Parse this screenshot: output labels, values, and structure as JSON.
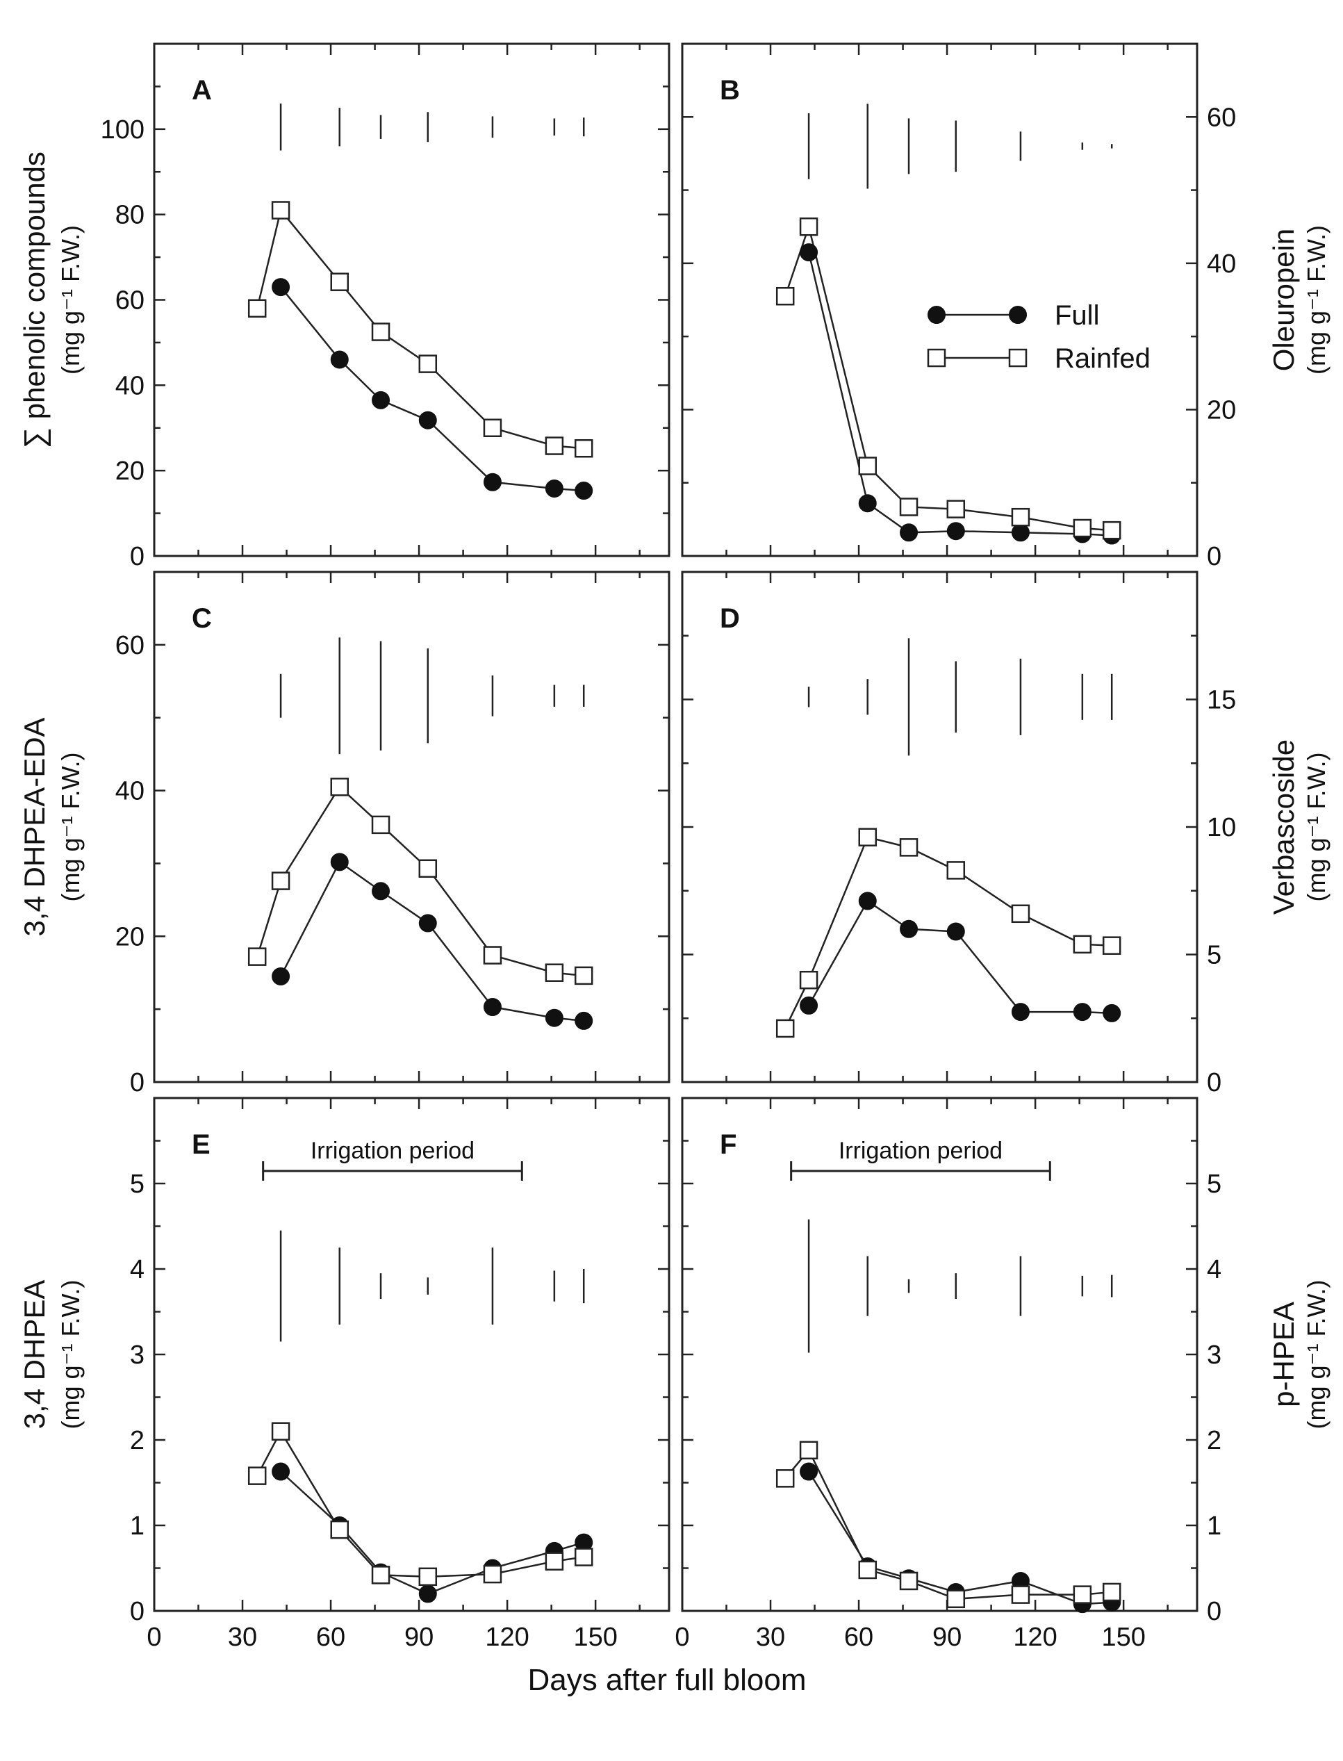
{
  "figure": {
    "xlabel": "Days after full bloom",
    "legend": {
      "full_label": "Full",
      "rainfed_label": "Rainfed"
    }
  },
  "chart_data": [
    {
      "type": "line",
      "panel": "A",
      "ylabel_main": "∑ phenolic compounds",
      "ylabel_unit": "(mg g⁻¹ F.W.)",
      "x_ticks": [
        0,
        30,
        60,
        90,
        120,
        150
      ],
      "xlim": [
        0,
        175
      ],
      "ylim": [
        0,
        120
      ],
      "y_ticks": [
        0,
        20,
        40,
        60,
        80,
        100
      ],
      "y_axis_side": "left",
      "series": [
        {
          "name": "Full",
          "x": [
            43,
            63,
            77,
            93,
            115,
            136,
            146
          ],
          "values": [
            63,
            46,
            36.5,
            31.8,
            17.3,
            15.8,
            15.3
          ]
        },
        {
          "name": "Rainfed",
          "x": [
            35,
            43,
            63,
            77,
            93,
            115,
            136,
            146
          ],
          "values": [
            58,
            81,
            64.2,
            52.5,
            45,
            30,
            25.8,
            25.2
          ]
        }
      ],
      "error_bars": {
        "x": [
          43,
          63,
          77,
          93,
          115,
          136,
          146
        ],
        "center": 100.5,
        "half": [
          5.5,
          4.5,
          2.8,
          3.5,
          2.5,
          2,
          2.2
        ]
      }
    },
    {
      "type": "line",
      "panel": "B",
      "ylabel_main": "Oleuropein",
      "ylabel_unit": "(mg g⁻¹ F.W.)",
      "x_ticks": [
        0,
        30,
        60,
        90,
        120,
        150
      ],
      "xlim": [
        0,
        175
      ],
      "ylim": [
        0,
        70
      ],
      "y_ticks": [
        0,
        20,
        40,
        60
      ],
      "y_axis_side": "right",
      "series": [
        {
          "name": "Full",
          "x": [
            43,
            63,
            77,
            93,
            115,
            136,
            146
          ],
          "values": [
            41.5,
            7.2,
            3.2,
            3.4,
            3.2,
            3,
            2.8
          ]
        },
        {
          "name": "Rainfed",
          "x": [
            35,
            43,
            63,
            77,
            93,
            115,
            136,
            146
          ],
          "values": [
            35.5,
            45,
            12.3,
            6.7,
            6.4,
            5.3,
            3.8,
            3.5
          ]
        }
      ],
      "error_bars": {
        "x": [
          43,
          63,
          77,
          93,
          115,
          136,
          146
        ],
        "center": 56,
        "half": [
          4.5,
          5.8,
          3.8,
          3.5,
          2,
          0.5,
          0.3
        ]
      }
    },
    {
      "type": "line",
      "panel": "C",
      "ylabel_main": "3,4 DHPEA-EDA",
      "ylabel_unit": "(mg g⁻¹ F.W.)",
      "x_ticks": [
        0,
        30,
        60,
        90,
        120,
        150
      ],
      "xlim": [
        0,
        175
      ],
      "ylim": [
        0,
        70
      ],
      "y_ticks": [
        0,
        20,
        40,
        60
      ],
      "y_axis_side": "left",
      "series": [
        {
          "name": "Full",
          "x": [
            43,
            63,
            77,
            93,
            115,
            136,
            146
          ],
          "values": [
            14.5,
            30.2,
            26.2,
            21.8,
            10.3,
            8.8,
            8.4
          ]
        },
        {
          "name": "Rainfed",
          "x": [
            35,
            43,
            63,
            77,
            93,
            115,
            136,
            146
          ],
          "values": [
            17.2,
            27.6,
            40.5,
            35.3,
            29.3,
            17.4,
            15,
            14.6
          ]
        }
      ],
      "error_bars": {
        "x": [
          43,
          63,
          77,
          93,
          115,
          136,
          146
        ],
        "center": 53,
        "half": [
          3,
          8,
          7.5,
          6.5,
          2.8,
          1.5,
          1.5
        ]
      }
    },
    {
      "type": "line",
      "panel": "D",
      "ylabel_main": "Verbascoside",
      "ylabel_unit": "(mg g⁻¹ F.W.)",
      "x_ticks": [
        0,
        30,
        60,
        90,
        120,
        150
      ],
      "xlim": [
        0,
        175
      ],
      "ylim": [
        0,
        20
      ],
      "y_ticks": [
        0,
        5,
        10,
        15
      ],
      "y_axis_side": "right",
      "series": [
        {
          "name": "Full",
          "x": [
            43,
            63,
            77,
            93,
            115,
            136,
            146
          ],
          "values": [
            3,
            7.1,
            6,
            5.9,
            2.75,
            2.75,
            2.7
          ]
        },
        {
          "name": "Rainfed",
          "x": [
            35,
            43,
            63,
            77,
            93,
            115,
            136,
            146
          ],
          "values": [
            2.1,
            4,
            9.6,
            9.2,
            8.3,
            6.6,
            5.4,
            5.35
          ]
        }
      ],
      "error_bars": {
        "x": [
          43,
          63,
          77,
          93,
          115,
          136,
          146
        ],
        "center": 15.1,
        "half": [
          0.4,
          0.7,
          2.3,
          1.4,
          1.5,
          0.9,
          0.9
        ]
      }
    },
    {
      "type": "line",
      "panel": "E",
      "ylabel_main": "3,4 DHPEA",
      "ylabel_unit": "(mg g⁻¹ F.W.)",
      "x_ticks": [
        0,
        30,
        60,
        90,
        120,
        150
      ],
      "xlim": [
        0,
        175
      ],
      "ylim": [
        0,
        6
      ],
      "y_ticks": [
        0,
        1,
        2,
        3,
        4,
        5
      ],
      "y_axis_side": "left",
      "annotation": {
        "text": "Irrigation period",
        "x_start": 37,
        "x_end": 125
      },
      "series": [
        {
          "name": "Full",
          "x": [
            43,
            63,
            77,
            93,
            115,
            136,
            146
          ],
          "values": [
            1.63,
            1,
            0.45,
            0.2,
            0.5,
            0.7,
            0.8
          ]
        },
        {
          "name": "Rainfed",
          "x": [
            35,
            43,
            63,
            77,
            93,
            115,
            136,
            146
          ],
          "values": [
            1.58,
            2.1,
            0.95,
            0.42,
            0.4,
            0.43,
            0.58,
            0.63
          ]
        }
      ],
      "error_bars": {
        "x": [
          43,
          63,
          77,
          93,
          115,
          136,
          146
        ],
        "center": 3.8,
        "half": [
          0.65,
          0.45,
          0.15,
          0.1,
          0.45,
          0.18,
          0.2
        ]
      }
    },
    {
      "type": "line",
      "panel": "F",
      "ylabel_main": "p-HPEA",
      "ylabel_unit": "(mg g⁻¹ F.W.)",
      "x_ticks": [
        0,
        30,
        60,
        90,
        120,
        150
      ],
      "xlim": [
        0,
        175
      ],
      "ylim": [
        0,
        6
      ],
      "y_ticks": [
        0,
        1,
        2,
        3,
        4,
        5
      ],
      "y_axis_side": "right",
      "annotation": {
        "text": "Irrigation period",
        "x_start": 37,
        "x_end": 125
      },
      "series": [
        {
          "name": "Full",
          "x": [
            43,
            63,
            77,
            93,
            115,
            136,
            146
          ],
          "values": [
            1.63,
            0.52,
            0.38,
            0.22,
            0.35,
            0.08,
            0.1
          ]
        },
        {
          "name": "Rainfed",
          "x": [
            35,
            43,
            63,
            77,
            93,
            115,
            136,
            146
          ],
          "values": [
            1.55,
            1.88,
            0.48,
            0.35,
            0.14,
            0.19,
            0.19,
            0.22
          ]
        }
      ],
      "error_bars": {
        "x": [
          43,
          63,
          77,
          93,
          115,
          136,
          146
        ],
        "center": 3.8,
        "half": [
          0.78,
          0.35,
          0.08,
          0.15,
          0.35,
          0.12,
          0.13
        ]
      }
    }
  ]
}
